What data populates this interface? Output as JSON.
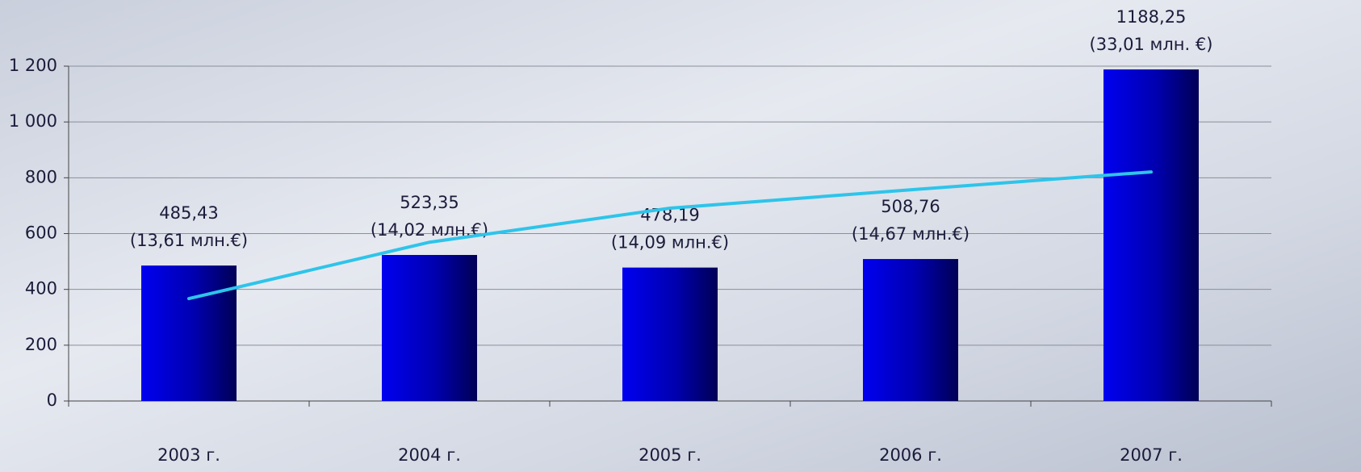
{
  "chart_data": {
    "type": "bar",
    "categories": [
      "2003 г.",
      "2004 г.",
      "2005 г.",
      "2006 г.",
      "2007 г."
    ],
    "series": [
      {
        "type": "bar",
        "color": "#0000e6",
        "values": [
          485.43,
          523.35,
          478.19,
          508.76,
          1188.25
        ],
        "value_labels": [
          "485,43",
          "523,35",
          "478,19",
          "508,76",
          "1188,25"
        ],
        "value_sublabels": [
          "(13,61 млн.€)",
          "(14,02 млн.€)",
          "(14,09 млн.€)",
          "(14,67 млн.€)",
          "(33,01 млн. €)"
        ]
      },
      {
        "type": "line",
        "color": "#2ec4ea",
        "values": [
          367,
          569,
          691,
          757,
          821
        ]
      }
    ],
    "ylim": [
      0,
      1200
    ],
    "yticks": [
      0,
      200,
      400,
      600,
      800,
      {
        "value": 1000,
        "label": "1 000"
      },
      {
        "value": 1200,
        "label": "1 200"
      }
    ],
    "grid": true
  }
}
